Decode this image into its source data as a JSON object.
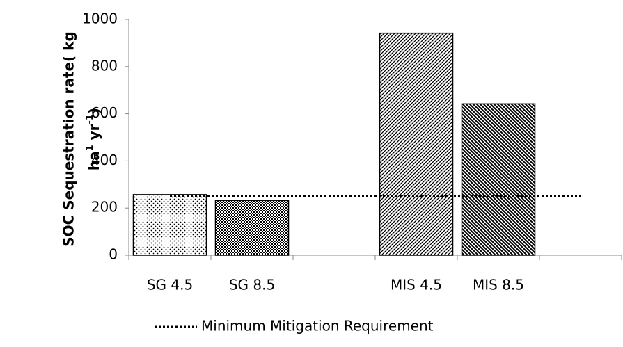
{
  "chart_data": {
    "type": "bar",
    "y_label_parts": [
      "SOC Sequestration rate( kg",
      "ha",
      "1",
      " yr",
      "-1",
      ")"
    ],
    "categories": [
      "SG 4.5",
      "SG 8.5",
      null,
      "MIS 4.5",
      "MIS 8.5",
      null
    ],
    "values": [
      257,
      232,
      null,
      942,
      642,
      null
    ],
    "patterns": [
      "dots",
      "dense-dots",
      null,
      "diagonal",
      "dense-diagonal",
      null
    ],
    "color": "#000000",
    "line_series": {
      "name": "Minimum Mitigation Requirement",
      "values": [
        250,
        250,
        250,
        250,
        250,
        250
      ],
      "color": "#000000",
      "style": "dotted"
    },
    "legend": "bottom",
    "ylim": [
      0,
      1000
    ],
    "yticks": [
      0,
      200,
      400,
      600,
      800,
      1000
    ],
    "grid": false
  }
}
